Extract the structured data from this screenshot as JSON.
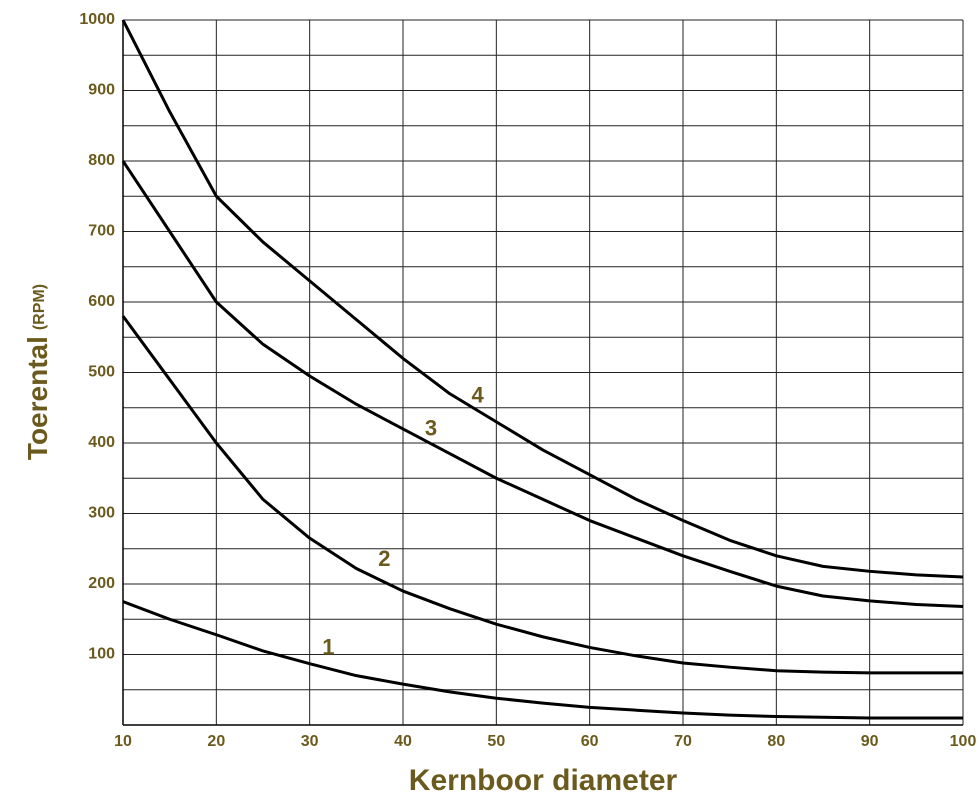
{
  "chart_data": {
    "type": "line",
    "x_label": "Kernboor diameter",
    "y_label": "Toerental",
    "y_label_unit": "(RPM)",
    "x": [
      10,
      15,
      20,
      25,
      30,
      35,
      40,
      45,
      50,
      55,
      60,
      65,
      70,
      75,
      80,
      85,
      90,
      95,
      100
    ],
    "series": [
      {
        "name": "1",
        "color": "#000000",
        "values": [
          175,
          150,
          128,
          105,
          87,
          70,
          58,
          47,
          38,
          31,
          25,
          21,
          17,
          14,
          12,
          11,
          10,
          10,
          10
        ]
      },
      {
        "name": "2",
        "color": "#000000",
        "values": [
          580,
          490,
          400,
          320,
          265,
          222,
          190,
          165,
          143,
          125,
          110,
          98,
          88,
          82,
          77,
          75,
          74,
          74,
          74
        ]
      },
      {
        "name": "3",
        "color": "#000000",
        "values": [
          800,
          700,
          600,
          540,
          495,
          455,
          420,
          385,
          350,
          320,
          290,
          265,
          240,
          218,
          197,
          183,
          176,
          171,
          168
        ]
      },
      {
        "name": "4",
        "color": "#000000",
        "values": [
          1000,
          870,
          750,
          685,
          630,
          575,
          520,
          470,
          430,
          390,
          355,
          320,
          290,
          262,
          240,
          225,
          218,
          213,
          210
        ]
      }
    ],
    "xlim": [
      10,
      100
    ],
    "ylim": [
      0,
      1000
    ],
    "xticks": [
      10,
      20,
      30,
      40,
      50,
      60,
      70,
      80,
      90,
      100
    ],
    "yticks": [
      100,
      200,
      300,
      400,
      500,
      600,
      700,
      800,
      900,
      1000
    ],
    "y_minor_grid": [
      50,
      150,
      250,
      350,
      450,
      550,
      650,
      750,
      850,
      950
    ],
    "grid": true
  }
}
